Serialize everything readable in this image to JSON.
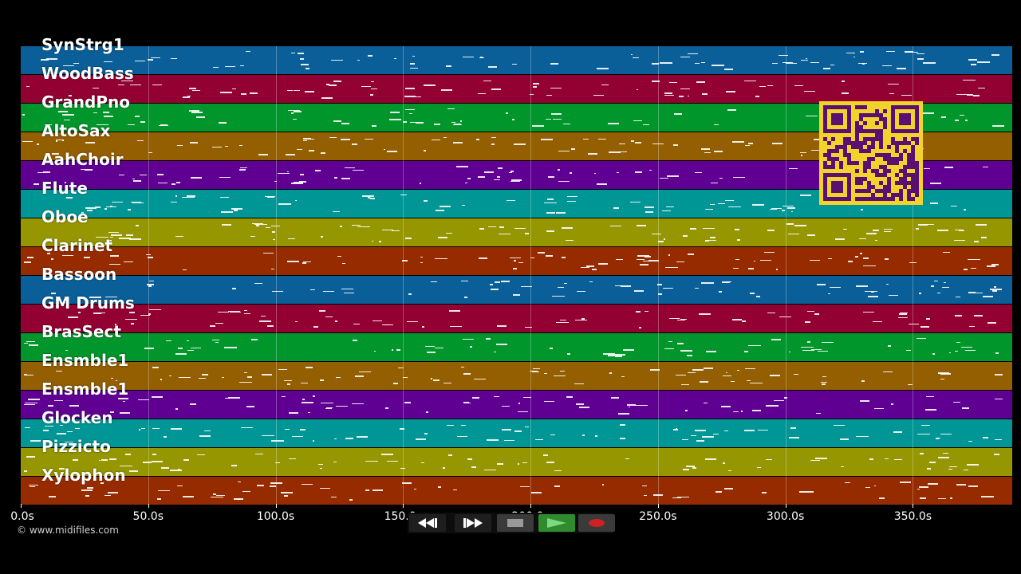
{
  "tracks": [
    {
      "label": "SynStrg1",
      "color": "#0a5f99"
    },
    {
      "label": "WoodBass",
      "color": "#930032"
    },
    {
      "label": "GrandPno",
      "color": "#00962b"
    },
    {
      "label": "AltoSax",
      "color": "#935f00"
    },
    {
      "label": "AahChoir",
      "color": "#5f0093"
    },
    {
      "label": "Flute",
      "color": "#009696"
    },
    {
      "label": "Oboe",
      "color": "#969600"
    },
    {
      "label": "Clarinet",
      "color": "#962b00"
    },
    {
      "label": "Bassoon",
      "color": "#0a5f99"
    },
    {
      "label": "GM Drums",
      "color": "#930032"
    },
    {
      "label": "BrasSect",
      "color": "#00962b"
    },
    {
      "label": "Ensmble1",
      "color": "#935f00"
    },
    {
      "label": "Ensmble1",
      "color": "#5f0093"
    },
    {
      "label": "Glocken",
      "color": "#009696"
    },
    {
      "label": "Pizzicto",
      "color": "#969600"
    },
    {
      "label": "Xylophon",
      "color": "#962b00"
    }
  ],
  "timeline": {
    "duration_s": 389,
    "ticks": [
      "0.0s",
      "50.0s",
      "100.0s",
      "150.0s",
      "200.0s",
      "250.0s",
      "300.0s",
      "350.0s"
    ],
    "tick_values_s": [
      0,
      50,
      100,
      150,
      200,
      250,
      300,
      350
    ]
  },
  "credit": "© www.midifiles.com",
  "transport": {
    "rewind_icon": "rewind-icon",
    "forward_icon": "fast-forward-icon",
    "stop_icon": "stop-icon",
    "play_icon": "play-icon",
    "record_icon": "record-icon"
  },
  "colors": {
    "play": "#2e8b2e",
    "record": "#cc2222",
    "qr_bg": "#f2d32b",
    "qr_fg": "#5a1070"
  }
}
